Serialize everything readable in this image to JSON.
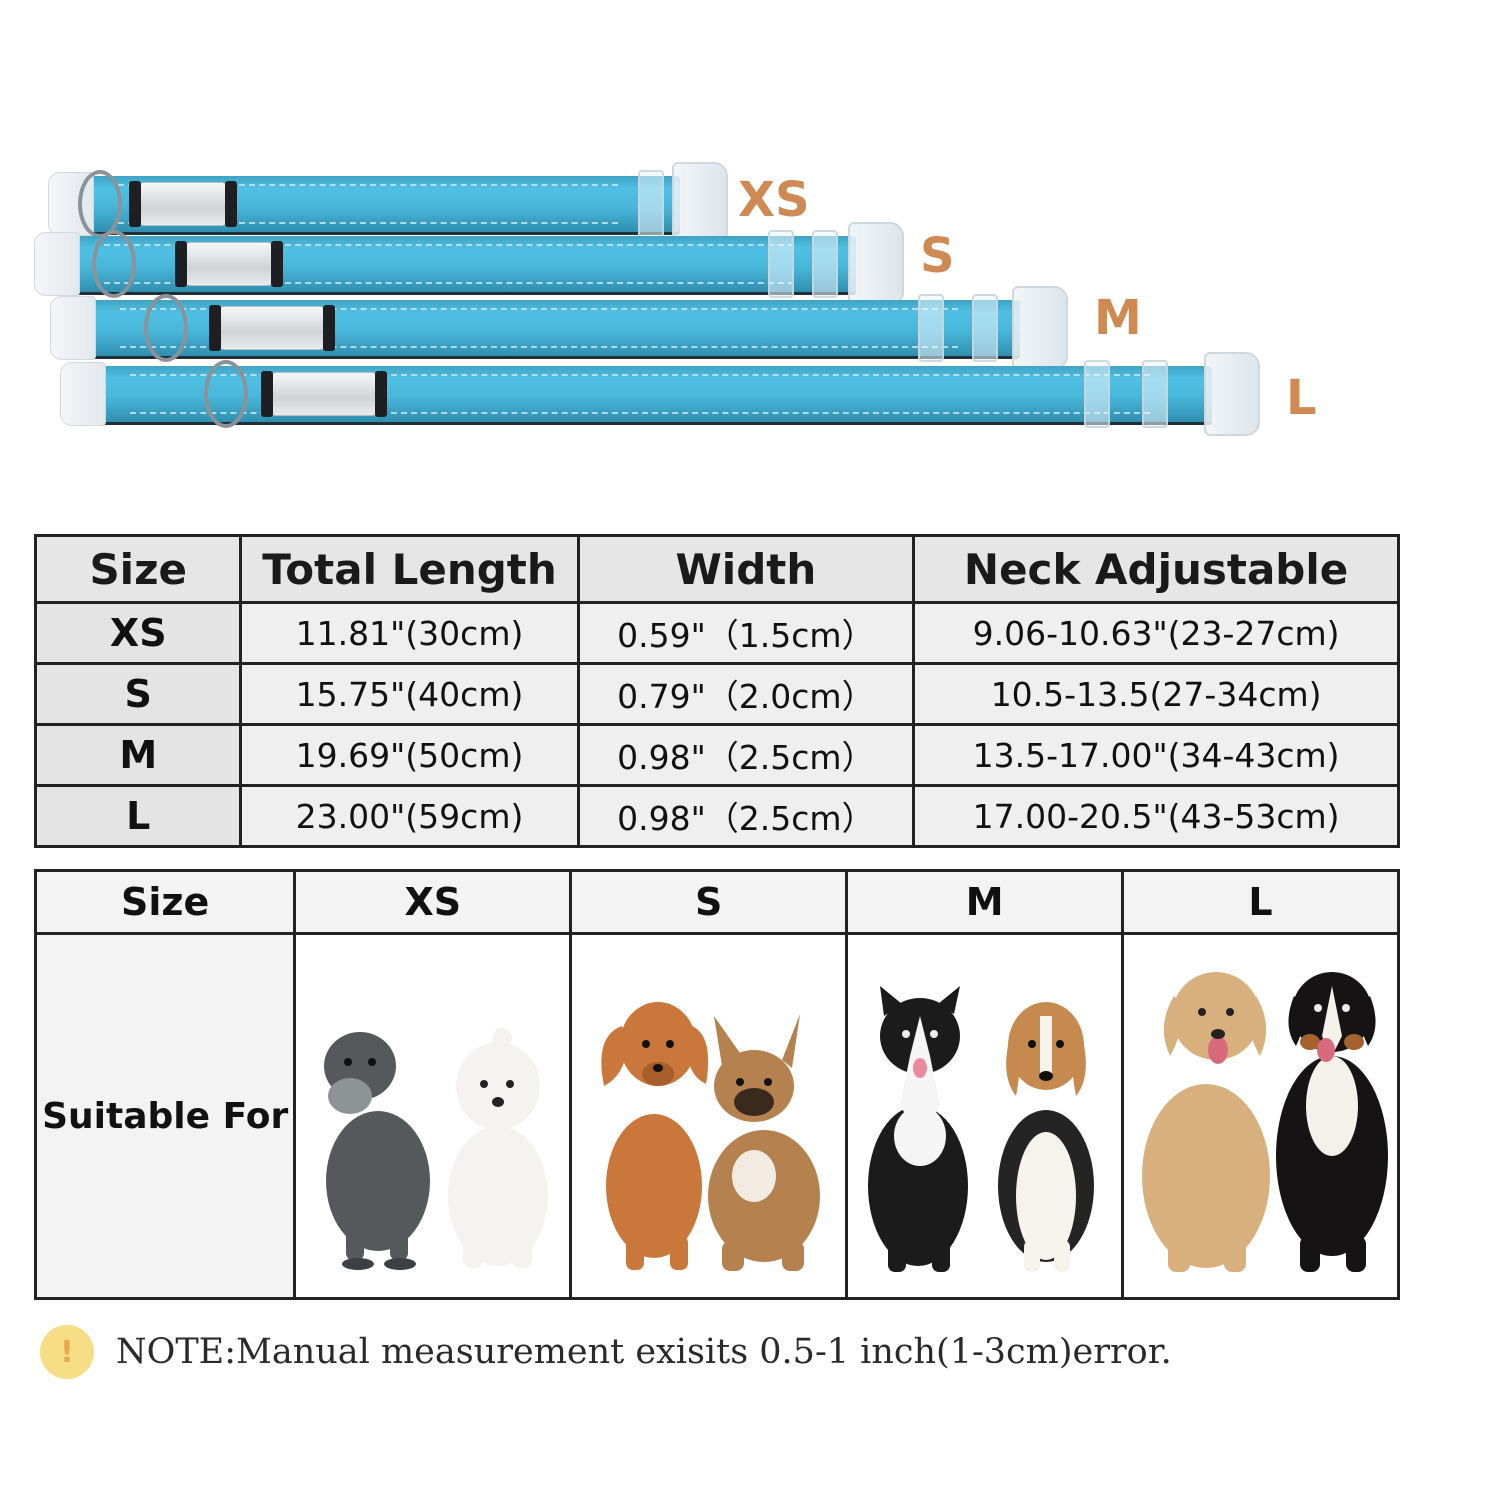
{
  "collar_labels": [
    "XS",
    "S",
    "M",
    "L"
  ],
  "colors": {
    "collar": "#4fc0e3",
    "size_tag": "#cf8a53",
    "table_bg": "#efefef"
  },
  "spec_table": {
    "headers": [
      "Size",
      "Total Length",
      "Width",
      "Neck Adjustable"
    ],
    "rows": [
      [
        "XS",
        "11.81\"(30cm)",
        "0.59\"（1.5cm）",
        "9.06-10.63\"(23-27cm)"
      ],
      [
        "S",
        "15.75\"(40cm)",
        "0.79\"（2.0cm）",
        "10.5-13.5(27-34cm)"
      ],
      [
        "M",
        "19.69\"(50cm)",
        "0.98\"（2.5cm）",
        "13.5-17.00\"(34-43cm)"
      ],
      [
        "L",
        "23.00\"(59cm)",
        "0.98\"（2.5cm）",
        "17.00-20.5\"(43-53cm)"
      ]
    ]
  },
  "suitable_table": {
    "headers": [
      "Size",
      "XS",
      "S",
      "M",
      "L"
    ],
    "row_label": "Suitable For",
    "images": [
      "miniature schnauzer and maltese",
      "dachshund and french bulldog",
      "border collie and beagle",
      "labrador and bernese mountain dog"
    ]
  },
  "note": {
    "icon": "warning-icon",
    "icon_glyph": "!",
    "text": "NOTE:Manual measurement exisits 0.5-1 inch(1-3cm)error."
  }
}
